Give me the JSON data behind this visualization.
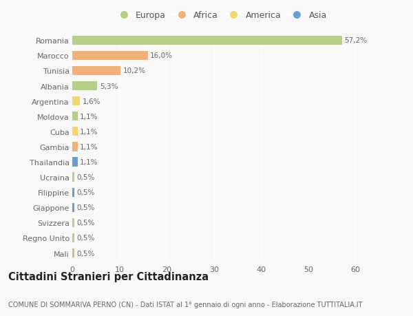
{
  "categories": [
    "Romania",
    "Marocco",
    "Tunisia",
    "Albania",
    "Argentina",
    "Moldova",
    "Cuba",
    "Gambia",
    "Thailandia",
    "Ucraina",
    "Filippine",
    "Giappone",
    "Svizzera",
    "Regno Unito",
    "Mali"
  ],
  "values": [
    57.2,
    16.0,
    10.2,
    5.3,
    1.6,
    1.1,
    1.1,
    1.1,
    1.1,
    0.5,
    0.5,
    0.5,
    0.5,
    0.5,
    0.5
  ],
  "labels": [
    "57,2%",
    "16,0%",
    "10,2%",
    "5,3%",
    "1,6%",
    "1,1%",
    "1,1%",
    "1,1%",
    "1,1%",
    "0,5%",
    "0,5%",
    "0,5%",
    "0,5%",
    "0,5%",
    "0,5%"
  ],
  "continents": [
    "Europa",
    "Africa",
    "Africa",
    "Europa",
    "America",
    "Europa",
    "America",
    "Africa",
    "Asia",
    "Europa",
    "Asia",
    "Asia",
    "Europa",
    "Europa",
    "Africa"
  ],
  "colors": {
    "Europa": "#b5cf8a",
    "Africa": "#f2b07a",
    "America": "#f5d56e",
    "Asia": "#6b9fd4"
  },
  "legend_order": [
    "Europa",
    "Africa",
    "America",
    "Asia"
  ],
  "title": "Cittadini Stranieri per Cittadinanza",
  "subtitle": "COMUNE DI SOMMARIVA PERNO (CN) - Dati ISTAT al 1° gennaio di ogni anno - Elaborazione TUTTITALIA.IT",
  "xlim": [
    0,
    63
  ],
  "xticks": [
    0,
    10,
    20,
    30,
    40,
    50,
    60
  ],
  "background_color": "#f9f9f9",
  "bar_height": 0.6,
  "grid_color": "#ffffff",
  "title_fontsize": 10.5,
  "subtitle_fontsize": 7.0,
  "tick_fontsize": 8.0,
  "label_fontsize": 7.5,
  "legend_fontsize": 9.0
}
